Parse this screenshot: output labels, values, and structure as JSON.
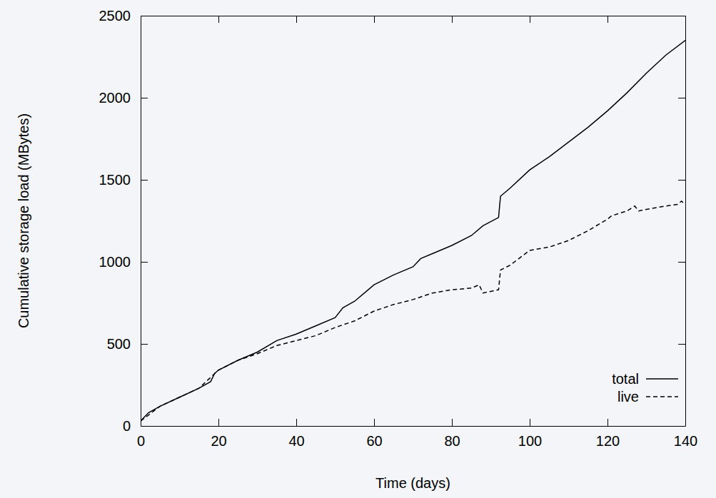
{
  "chart_data": {
    "type": "line",
    "x_label": "Time (days)",
    "y_label": "Cumulative storage load (MBytes)",
    "xlim": [
      0,
      140
    ],
    "xticks": [
      0,
      20,
      40,
      60,
      80,
      100,
      120,
      140
    ],
    "ylim": [
      0,
      2500
    ],
    "yticks": [
      0,
      500,
      1000,
      1500,
      2000,
      2500
    ],
    "grid": false,
    "legend": "lower right",
    "series": [
      {
        "name": "total",
        "color": "#000000",
        "line_style": "solid",
        "x": [
          0,
          2,
          5,
          10,
          15,
          18,
          19,
          20,
          25,
          30,
          35,
          40,
          45,
          50,
          52,
          55,
          60,
          65,
          70,
          72,
          75,
          80,
          85,
          88,
          92,
          92.5,
          95,
          100,
          105,
          110,
          115,
          120,
          125,
          130,
          135,
          140
        ],
        "values": [
          30,
          80,
          120,
          175,
          230,
          270,
          320,
          340,
          400,
          450,
          520,
          560,
          610,
          660,
          720,
          760,
          860,
          920,
          970,
          1020,
          1050,
          1100,
          1160,
          1220,
          1270,
          1400,
          1450,
          1560,
          1640,
          1730,
          1820,
          1920,
          2030,
          2150,
          2260,
          2350
        ]
      },
      {
        "name": "live",
        "color": "#000000",
        "line_style": "dashed",
        "x": [
          0,
          5,
          10,
          15,
          20,
          25,
          30,
          35,
          40,
          45,
          48,
          50,
          55,
          60,
          65,
          70,
          75,
          80,
          85,
          87,
          88,
          90,
          92,
          92.5,
          95,
          100,
          105,
          110,
          115,
          120,
          121,
          125,
          127,
          128,
          130,
          135,
          138,
          139,
          140
        ],
        "values": [
          30,
          120,
          175,
          230,
          340,
          400,
          440,
          490,
          520,
          550,
          580,
          600,
          640,
          700,
          740,
          770,
          810,
          830,
          840,
          860,
          810,
          820,
          830,
          950,
          980,
          1070,
          1090,
          1130,
          1190,
          1260,
          1280,
          1310,
          1340,
          1310,
          1320,
          1340,
          1350,
          1370,
          1350
        ]
      }
    ]
  }
}
